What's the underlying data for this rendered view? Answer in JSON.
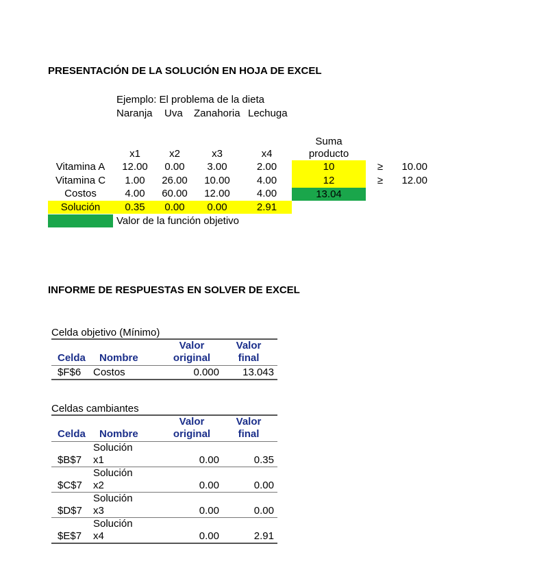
{
  "section1": {
    "title": "PRESENTACIÓN DE LA SOLUCIÓN EN HOJA DE EXCEL",
    "example": "Ejemplo: El problema de la dieta",
    "foods": [
      "Naranja",
      "Uva",
      "Zanahoria",
      "Lechuga"
    ],
    "suma_header": [
      "Suma",
      "producto"
    ],
    "var_headers": [
      "x1",
      "x2",
      "x3",
      "x4"
    ],
    "rows": [
      {
        "label": "Vitamina A",
        "values": [
          "12.00",
          "0.00",
          "3.00",
          "2.00"
        ],
        "suma": "10",
        "op": "≥",
        "rhs": "10.00"
      },
      {
        "label": "Vitamina C",
        "values": [
          "1.00",
          "26.00",
          "10.00",
          "4.00"
        ],
        "suma": "12",
        "op": "≥",
        "rhs": "12.00"
      },
      {
        "label": "Costos",
        "values": [
          "4.00",
          "60.00",
          "12.00",
          "4.00"
        ],
        "suma": "13.04"
      },
      {
        "label": "Solución",
        "values": [
          "0.35",
          "0.00",
          "0.00",
          "2.91"
        ]
      }
    ],
    "legend_text": "Valor de la función objetivo",
    "colors": {
      "yellow": "#ffff00",
      "green": "#1aa64b"
    }
  },
  "section2": {
    "title": "INFORME DE RESPUESTAS EN SOLVER DE EXCEL",
    "objective": {
      "caption": "Celda objetivo (Mínimo)",
      "headers": {
        "celda": "Celda",
        "nombre": "Nombre",
        "orig1": "Valor",
        "orig2": "original",
        "fin1": "Valor",
        "fin2": "final"
      },
      "row": {
        "celda": "$F$6",
        "nombre": "Costos",
        "original": "0.000",
        "final": "13.043"
      }
    },
    "changing": {
      "caption": "Celdas cambiantes",
      "headers": {
        "celda": "Celda",
        "nombre": "Nombre",
        "orig1": "Valor",
        "orig2": "original",
        "fin1": "Valor",
        "fin2": "final"
      },
      "rows": [
        {
          "celda": "$B$7",
          "nombre1": "Solución",
          "nombre2": "x1",
          "original": "0.00",
          "final": "0.35"
        },
        {
          "celda": "$C$7",
          "nombre1": "Solución",
          "nombre2": "x2",
          "original": "0.00",
          "final": "0.00"
        },
        {
          "celda": "$D$7",
          "nombre1": "Solución",
          "nombre2": "x3",
          "original": "0.00",
          "final": "0.00"
        },
        {
          "celda": "$E$7",
          "nombre1": "Solución",
          "nombre2": "x4",
          "original": "0.00",
          "final": "2.91"
        }
      ]
    }
  }
}
